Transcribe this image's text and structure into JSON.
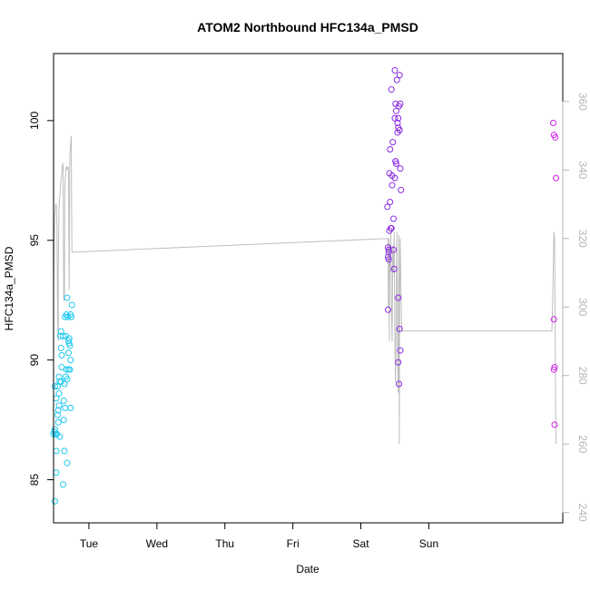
{
  "chart_data": {
    "type": "scatter",
    "title": "ATOM2 Northbound HFC134a_PMSD",
    "xlabel": "Date",
    "ylabel": "HFC134a_PMSD",
    "x_ticks": [
      "Tue",
      "Wed",
      "Thu",
      "Fri",
      "Sat",
      "Sun"
    ],
    "xlim_days": [
      -0.52,
      6.97
    ],
    "ylim": [
      83.2,
      102.8
    ],
    "y_ticks": [
      85,
      90,
      95,
      100
    ],
    "y2lim": [
      237.0,
      374.0
    ],
    "y2_ticks": [
      240,
      260,
      280,
      300,
      320,
      340,
      360
    ],
    "grid": false,
    "colors": {
      "cyan": "#1EC8F0",
      "violet": "#8A2BE2",
      "magenta": "#D020E8",
      "line": "#BEBEBE",
      "right_axis": "#B4B4B4"
    },
    "series": [
      {
        "color": "#1EC8F0",
        "points": [
          [
            -0.5,
            84.1
          ],
          [
            -0.52,
            86.9
          ],
          [
            -0.51,
            87.0
          ],
          [
            -0.49,
            86.9
          ],
          [
            -0.5,
            87.1
          ],
          [
            -0.48,
            86.2
          ],
          [
            -0.48,
            85.3
          ],
          [
            -0.47,
            86.9
          ],
          [
            -0.45,
            87.4
          ],
          [
            -0.46,
            87.7
          ],
          [
            -0.45,
            87.9
          ],
          [
            -0.44,
            88.1
          ],
          [
            -0.43,
            86.8
          ],
          [
            -0.5,
            88.9
          ],
          [
            -0.48,
            88.4
          ],
          [
            -0.46,
            88.9
          ],
          [
            -0.44,
            88.6
          ],
          [
            -0.43,
            89.1
          ],
          [
            -0.44,
            89.3
          ],
          [
            -0.41,
            89.1
          ],
          [
            -0.4,
            89.7
          ],
          [
            -0.41,
            90.5
          ],
          [
            -0.4,
            90.2
          ],
          [
            -0.42,
            91.0
          ],
          [
            -0.41,
            91.2
          ],
          [
            -0.38,
            91.0
          ],
          [
            -0.38,
            84.8
          ],
          [
            -0.37,
            87.5
          ],
          [
            -0.36,
            86.2
          ],
          [
            -0.37,
            88.3
          ],
          [
            -0.35,
            88.0
          ],
          [
            -0.36,
            89.0
          ],
          [
            -0.34,
            89.3
          ],
          [
            -0.32,
            89.2
          ],
          [
            -0.33,
            89.6
          ],
          [
            -0.32,
            85.7
          ],
          [
            -0.35,
            91.8
          ],
          [
            -0.33,
            91.9
          ],
          [
            -0.32,
            92.6
          ],
          [
            -0.34,
            91.0
          ],
          [
            -0.31,
            91.8
          ],
          [
            -0.3,
            90.3
          ],
          [
            -0.3,
            90.8
          ],
          [
            -0.29,
            90.9
          ],
          [
            -0.29,
            90.7
          ],
          [
            -0.28,
            90.6
          ],
          [
            -0.28,
            89.6
          ],
          [
            -0.3,
            89.6
          ],
          [
            -0.27,
            88.0
          ],
          [
            -0.27,
            90.0
          ],
          [
            -0.26,
            91.8
          ],
          [
            -0.27,
            91.9
          ],
          [
            -0.25,
            92.3
          ]
        ]
      },
      {
        "color": "#8A2BE2",
        "points": [
          [
            4.4,
            92.1
          ],
          [
            4.4,
            94.7
          ],
          [
            4.41,
            94.6
          ],
          [
            4.4,
            94.3
          ],
          [
            4.41,
            94.2
          ],
          [
            4.41,
            94.5
          ],
          [
            4.39,
            96.4
          ],
          [
            4.42,
            95.4
          ],
          [
            4.43,
            96.6
          ],
          [
            4.42,
            97.8
          ],
          [
            4.43,
            98.8
          ],
          [
            4.44,
            95.5
          ],
          [
            4.45,
            95.5
          ],
          [
            4.46,
            97.7
          ],
          [
            4.46,
            97.3
          ],
          [
            4.45,
            101.3
          ],
          [
            4.47,
            99.1
          ],
          [
            4.48,
            95.9
          ],
          [
            4.48,
            94.6
          ],
          [
            4.49,
            93.8
          ],
          [
            4.5,
            97.6
          ],
          [
            4.51,
            98.3
          ],
          [
            4.51,
            98.3
          ],
          [
            4.52,
            98.2
          ],
          [
            4.5,
            100.1
          ],
          [
            4.51,
            100.7
          ],
          [
            4.52,
            100.4
          ],
          [
            4.53,
            101.7
          ],
          [
            4.5,
            102.1
          ],
          [
            4.54,
            99.9
          ],
          [
            4.55,
            99.7
          ],
          [
            4.55,
            100.1
          ],
          [
            4.54,
            99.5
          ],
          [
            4.56,
            100.6
          ],
          [
            4.57,
            99.6
          ],
          [
            4.58,
            100.7
          ],
          [
            4.57,
            101.9
          ],
          [
            4.58,
            98.0
          ],
          [
            4.59,
            97.1
          ],
          [
            4.55,
            92.6
          ],
          [
            4.57,
            91.3
          ],
          [
            4.58,
            90.4
          ],
          [
            4.55,
            89.9
          ],
          [
            4.56,
            89.0
          ]
        ]
      },
      {
        "color": "#D020E8",
        "points": [
          [
            6.83,
            99.9
          ],
          [
            6.84,
            99.4
          ],
          [
            6.86,
            99.3
          ],
          [
            6.87,
            97.6
          ],
          [
            6.84,
            91.7
          ],
          [
            6.85,
            89.7
          ],
          [
            6.84,
            89.6
          ],
          [
            6.85,
            87.3
          ]
        ]
      }
    ],
    "line_series": {
      "axis": "right",
      "color": "#BEBEBE",
      "points": [
        [
          -0.52,
          302
        ],
        [
          -0.51,
          320
        ],
        [
          -0.5,
          327
        ],
        [
          -0.49,
          330
        ],
        [
          -0.48,
          330
        ],
        [
          -0.47,
          324
        ],
        [
          -0.46,
          296
        ],
        [
          -0.45,
          290
        ],
        [
          -0.45,
          312
        ],
        [
          -0.44,
          329
        ],
        [
          -0.43,
          332
        ],
        [
          -0.41,
          337
        ],
        [
          -0.39,
          341
        ],
        [
          -0.38,
          342
        ],
        [
          -0.37,
          302
        ],
        [
          -0.36,
          302
        ],
        [
          -0.355,
          335
        ],
        [
          -0.34,
          340
        ],
        [
          -0.33,
          341
        ],
        [
          -0.32,
          340
        ],
        [
          -0.31,
          341
        ],
        [
          -0.3,
          340
        ],
        [
          -0.29,
          305
        ],
        [
          -0.28,
          345
        ],
        [
          -0.27,
          347
        ],
        [
          -0.26,
          350
        ],
        [
          -0.25,
          316
        ],
        [
          4.4,
          320
        ],
        [
          4.405,
          300
        ],
        [
          4.41,
          320
        ],
        [
          4.42,
          290
        ],
        [
          4.425,
          318
        ],
        [
          4.43,
          310
        ],
        [
          4.44,
          322
        ],
        [
          4.45,
          300
        ],
        [
          4.46,
          290
        ],
        [
          4.47,
          318
        ],
        [
          4.48,
          310
        ],
        [
          4.49,
          322
        ],
        [
          4.5,
          290
        ],
        [
          4.51,
          278
        ],
        [
          4.52,
          300
        ],
        [
          4.53,
          322
        ],
        [
          4.54,
          290
        ],
        [
          4.55,
          275
        ],
        [
          4.56,
          321
        ],
        [
          4.565,
          260
        ],
        [
          4.57,
          300
        ],
        [
          4.58,
          320
        ],
        [
          4.59,
          305
        ],
        [
          4.6,
          293
        ],
        [
          6.81,
          293
        ],
        [
          6.82,
          300
        ],
        [
          6.84,
          322
        ],
        [
          6.85,
          320
        ],
        [
          6.86,
          285
        ],
        [
          6.87,
          260
        ]
      ]
    }
  }
}
